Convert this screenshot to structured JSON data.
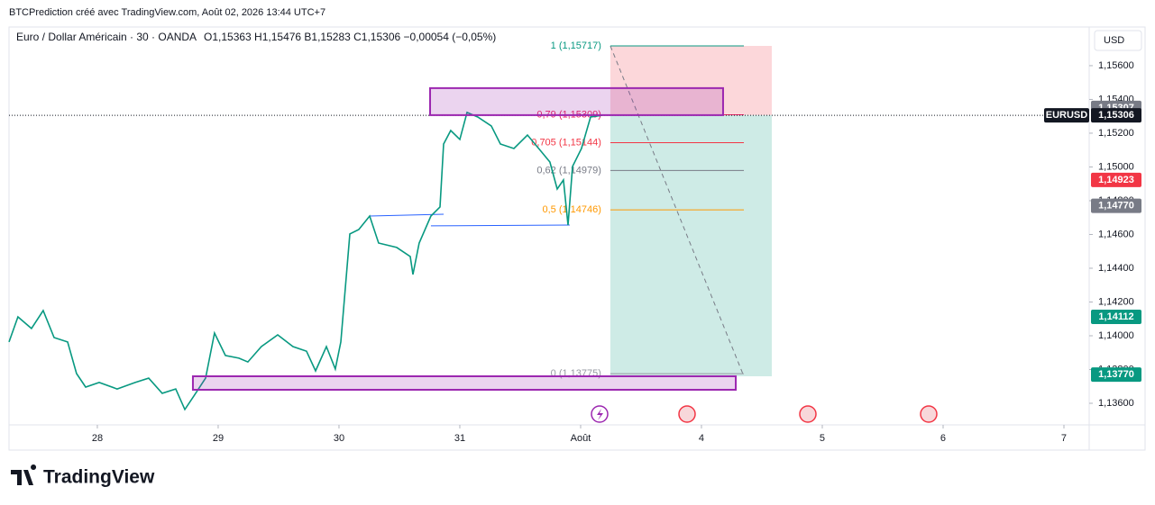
{
  "header": {
    "attribution": "BTCPrediction créé avec TradingView.com, Août 02, 2026 13:44 UTC+7"
  },
  "toolbar": {
    "currency": "USD"
  },
  "footer": {
    "brand": "TradingView"
  },
  "chart_data": {
    "type": "line",
    "title": "Euro / Dollar Américain · 30 · OANDA",
    "ohlc_legend": "O1,15363 H1,15476 B1,15283 C1,15306 −0,00054 (−0,05%)",
    "symbol": "EURUSD",
    "color": "#089981",
    "x": [
      -0.731,
      -0.657,
      -0.545,
      -0.448,
      -0.358,
      -0.246,
      -0.172,
      -0.097,
      0.015,
      0.164,
      0.313,
      0.425,
      0.537,
      0.649,
      0.724,
      0.799,
      0.896,
      0.97,
      1.06,
      1.172,
      1.246,
      1.358,
      1.493,
      1.619,
      1.731,
      1.806,
      1.896,
      1.97,
      2.015,
      2.09,
      2.164,
      2.254,
      2.328,
      2.478,
      2.59,
      2.612,
      2.664,
      2.761,
      2.836,
      2.866,
      2.925,
      3.0,
      3.06,
      3.149,
      3.261,
      3.336,
      3.448,
      3.56,
      3.672,
      3.746,
      3.806,
      3.858,
      3.896,
      3.933,
      4.007,
      4.082,
      4.179
    ],
    "values": [
      1.13963,
      1.14112,
      1.14043,
      1.14149,
      1.13989,
      1.13963,
      1.13776,
      1.13696,
      1.13723,
      1.13685,
      1.13723,
      1.13749,
      1.13659,
      1.13685,
      1.13563,
      1.13643,
      1.13749,
      1.14016,
      1.13883,
      1.13867,
      1.13845,
      1.13936,
      1.14005,
      1.13936,
      1.13909,
      1.13792,
      1.13936,
      1.13803,
      1.13963,
      1.14603,
      1.14629,
      1.14709,
      1.14549,
      1.14523,
      1.14469,
      1.14363,
      1.14549,
      1.14709,
      1.14763,
      1.15136,
      1.15216,
      1.15163,
      1.15323,
      1.15296,
      1.15243,
      1.15136,
      1.15109,
      1.15189,
      1.15093,
      1.15029,
      1.14869,
      1.14923,
      1.14656,
      1.15003,
      1.15109,
      1.15296,
      1.15306
    ],
    "xlim": [
      -0.731,
      8.209
    ],
    "ylim": [
      1.13472,
      1.15829
    ],
    "xticks": [
      {
        "value": 0,
        "label": "28"
      },
      {
        "value": 1,
        "label": "29"
      },
      {
        "value": 2,
        "label": "30"
      },
      {
        "value": 3,
        "label": "31"
      },
      {
        "value": 4,
        "label": "Août"
      },
      {
        "value": 5,
        "label": "4"
      },
      {
        "value": 6,
        "label": "5"
      },
      {
        "value": 7,
        "label": "6"
      },
      {
        "value": 8,
        "label": "7"
      }
    ],
    "yticks": [
      {
        "value": 1.136,
        "label": "1,13600"
      },
      {
        "value": 1.138,
        "label": "1,13800"
      },
      {
        "value": 1.14,
        "label": "1,14000"
      },
      {
        "value": 1.142,
        "label": "1,14200"
      },
      {
        "value": 1.144,
        "label": "1,14400"
      },
      {
        "value": 1.146,
        "label": "1,14600"
      },
      {
        "value": 1.148,
        "label": "1,14800"
      },
      {
        "value": 1.15,
        "label": "1,15000"
      },
      {
        "value": 1.152,
        "label": "1,15200"
      },
      {
        "value": 1.154,
        "label": "1,15400"
      },
      {
        "value": 1.156,
        "label": "1,15600"
      }
    ],
    "last_price": 1.15306,
    "price_badges": [
      {
        "value": 1.15307,
        "label": "1,15307",
        "color": "#787b86"
      },
      {
        "value": 1.15306,
        "label": "1,15306",
        "color": "#131722"
      },
      {
        "value": 1.14923,
        "label": "1,14923",
        "color": "#f23645"
      },
      {
        "value": 1.1477,
        "label": "1,14770",
        "color": "#787b86"
      },
      {
        "value": 1.14112,
        "label": "1,14112",
        "color": "#089981"
      },
      {
        "value": 1.1377,
        "label": "1,13770",
        "color": "#089981"
      }
    ],
    "fib_x": [
      4.246,
      5.351
    ],
    "fib_levels": [
      {
        "value": 1.15717,
        "label": "1 (1,15717)",
        "color": "#089981"
      },
      {
        "value": 1.15309,
        "label": "0,79 (1,15309)",
        "color": "#e91e63"
      },
      {
        "value": 1.15144,
        "label": "0,705 (1,15144)",
        "color": "#f23645"
      },
      {
        "value": 1.14979,
        "label": "0,62 (1,14979)",
        "color": "#787b86"
      },
      {
        "value": 1.14746,
        "label": "0,5 (1,14746)",
        "color": "#ff9800"
      },
      {
        "value": 1.13775,
        "label": "0 (1,13775)",
        "color": "#9598a1"
      }
    ],
    "zones": [
      {
        "x": [
          2.754,
          5.179
        ],
        "y": [
          1.15307,
          1.15467
        ]
      },
      {
        "x": [
          0.791,
          5.284
        ],
        "y": [
          1.1368,
          1.1376
        ]
      }
    ],
    "position": {
      "x": [
        4.246,
        5.582
      ],
      "entry": 1.15307,
      "stop": 1.15717,
      "target": 1.1376
    },
    "projection": {
      "x": [
        4.246,
        5.351
      ],
      "y": [
        1.15717,
        1.1376
      ]
    },
    "trend_lines": [
      {
        "x": [
          2.254,
          2.866
        ],
        "y": [
          1.14709,
          1.1472
        ]
      },
      {
        "x": [
          2.761,
          3.91
        ],
        "y": [
          1.14651,
          1.14656
        ]
      }
    ]
  }
}
